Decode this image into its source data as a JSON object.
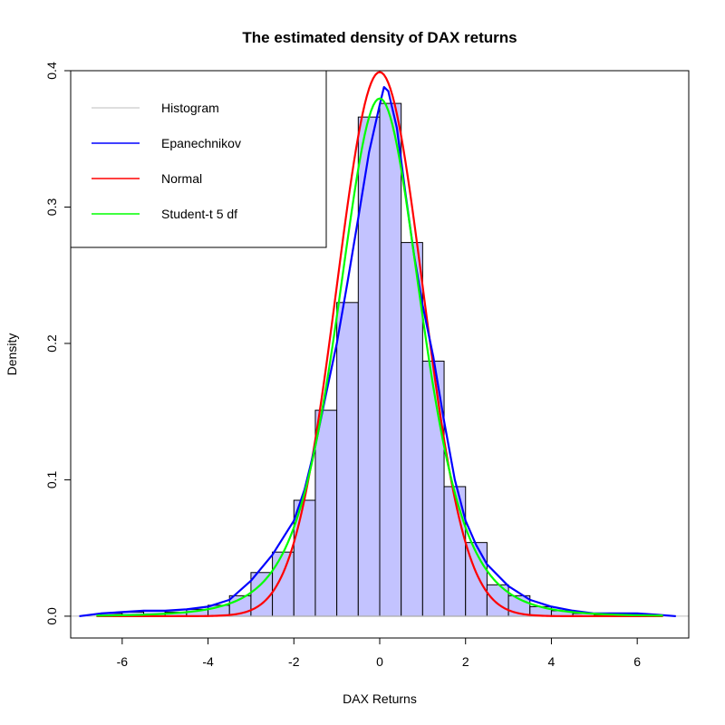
{
  "chart_data": {
    "type": "bar",
    "title": "The estimated density of DAX returns",
    "xlabel": "DAX Returns",
    "ylabel": "Density",
    "xlim": [
      -7.2,
      7.2
    ],
    "ylim": [
      -0.016,
      0.4
    ],
    "x_ticks": [
      -6,
      -4,
      -2,
      0,
      2,
      4,
      6
    ],
    "x_tick_labels": [
      "-6",
      "-4",
      "-2",
      "0",
      "2",
      "4",
      "6"
    ],
    "y_ticks": [
      0.0,
      0.1,
      0.2,
      0.3,
      0.4
    ],
    "y_tick_labels": [
      "0.0",
      "0.1",
      "0.2",
      "0.3",
      "0.4"
    ],
    "grid": false,
    "legend_position": "top-left",
    "legend": [
      {
        "label": "Histogram",
        "color": "#bebebe"
      },
      {
        "label": "Epanechnikov",
        "color": "#0000ff"
      },
      {
        "label": "Normal",
        "color": "#ff0000"
      },
      {
        "label": "Student-t 5 df",
        "color": "#00ff00"
      }
    ],
    "histogram": {
      "fill": "#c3c3ff",
      "stroke": "#000000",
      "bin_width": 0.5,
      "bins": [
        {
          "x0": -6.5,
          "x1": -6.0,
          "density": 0.002
        },
        {
          "x0": -6.0,
          "x1": -5.5,
          "density": 0.003
        },
        {
          "x0": -5.5,
          "x1": -5.0,
          "density": 0.004
        },
        {
          "x0": -5.0,
          "x1": -4.5,
          "density": 0.003
        },
        {
          "x0": -4.5,
          "x1": -4.0,
          "density": 0.005
        },
        {
          "x0": -4.0,
          "x1": -3.5,
          "density": 0.008
        },
        {
          "x0": -3.5,
          "x1": -3.0,
          "density": 0.015
        },
        {
          "x0": -3.0,
          "x1": -2.5,
          "density": 0.032
        },
        {
          "x0": -2.5,
          "x1": -2.0,
          "density": 0.047
        },
        {
          "x0": -2.0,
          "x1": -1.5,
          "density": 0.085
        },
        {
          "x0": -1.5,
          "x1": -1.0,
          "density": 0.151
        },
        {
          "x0": -1.0,
          "x1": -0.5,
          "density": 0.23
        },
        {
          "x0": -0.5,
          "x1": 0.0,
          "density": 0.366
        },
        {
          "x0": 0.0,
          "x1": 0.5,
          "density": 0.376
        },
        {
          "x0": 0.5,
          "x1": 1.0,
          "density": 0.274
        },
        {
          "x0": 1.0,
          "x1": 1.5,
          "density": 0.187
        },
        {
          "x0": 1.5,
          "x1": 2.0,
          "density": 0.095
        },
        {
          "x0": 2.0,
          "x1": 2.5,
          "density": 0.054
        },
        {
          "x0": 2.5,
          "x1": 3.0,
          "density": 0.023
        },
        {
          "x0": 3.0,
          "x1": 3.5,
          "density": 0.015
        },
        {
          "x0": 3.5,
          "x1": 4.0,
          "density": 0.007
        },
        {
          "x0": 4.0,
          "x1": 4.5,
          "density": 0.004
        },
        {
          "x0": 4.5,
          "x1": 5.0,
          "density": 0.002
        },
        {
          "x0": 5.0,
          "x1": 5.5,
          "density": 0.001
        },
        {
          "x0": 5.5,
          "x1": 6.0,
          "density": 0.002
        },
        {
          "x0": 6.0,
          "x1": 6.5,
          "density": 0.001
        }
      ]
    },
    "series": [
      {
        "name": "Epanechnikov",
        "type": "line",
        "color": "#0000ff",
        "points": [
          [
            -7.0,
            0.0
          ],
          [
            -6.5,
            0.002
          ],
          [
            -6.0,
            0.003
          ],
          [
            -5.5,
            0.004
          ],
          [
            -5.0,
            0.004
          ],
          [
            -4.5,
            0.005
          ],
          [
            -4.0,
            0.007
          ],
          [
            -3.5,
            0.012
          ],
          [
            -3.0,
            0.026
          ],
          [
            -2.5,
            0.045
          ],
          [
            -2.0,
            0.07
          ],
          [
            -1.75,
            0.093
          ],
          [
            -1.5,
            0.125
          ],
          [
            -1.25,
            0.163
          ],
          [
            -1.0,
            0.2
          ],
          [
            -0.75,
            0.245
          ],
          [
            -0.5,
            0.292
          ],
          [
            -0.25,
            0.34
          ],
          [
            0.0,
            0.375
          ],
          [
            0.1,
            0.388
          ],
          [
            0.2,
            0.385
          ],
          [
            0.4,
            0.358
          ],
          [
            0.6,
            0.31
          ],
          [
            0.8,
            0.265
          ],
          [
            1.0,
            0.228
          ],
          [
            1.25,
            0.19
          ],
          [
            1.5,
            0.143
          ],
          [
            1.75,
            0.1
          ],
          [
            2.0,
            0.07
          ],
          [
            2.25,
            0.052
          ],
          [
            2.5,
            0.038
          ],
          [
            3.0,
            0.022
          ],
          [
            3.5,
            0.012
          ],
          [
            4.0,
            0.007
          ],
          [
            4.5,
            0.004
          ],
          [
            5.0,
            0.002
          ],
          [
            5.5,
            0.002
          ],
          [
            6.0,
            0.002
          ],
          [
            6.5,
            0.001
          ],
          [
            6.9,
            0.0
          ]
        ]
      },
      {
        "name": "Normal",
        "type": "line",
        "color": "#ff0000",
        "mean": 0,
        "sd": 1,
        "range": [
          -6.6,
          6.6
        ]
      },
      {
        "name": "Student-t 5 df",
        "type": "line",
        "color": "#00ff00",
        "df": 5,
        "range": [
          -6.6,
          6.6
        ]
      }
    ]
  }
}
